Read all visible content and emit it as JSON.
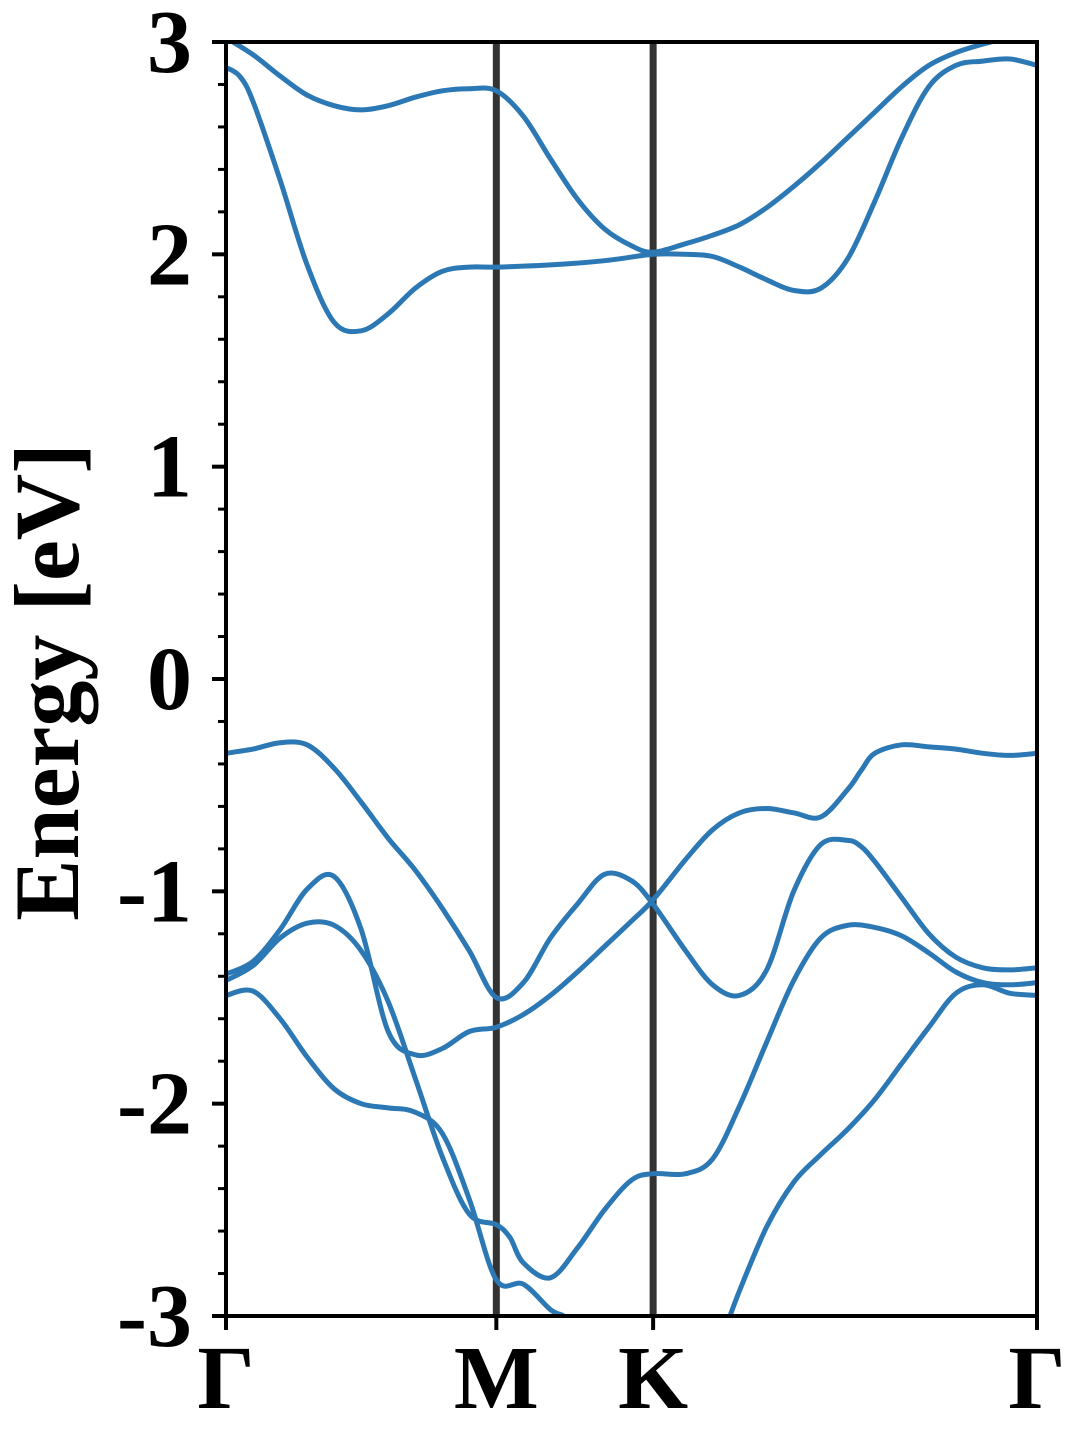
{
  "chart_data": {
    "type": "line",
    "title": "",
    "xlabel": "",
    "ylabel": "Energy [eV]",
    "ylim": [
      -3,
      3
    ],
    "xlim": [
      0,
      3
    ],
    "grid": false,
    "y_ticks": [
      "-3",
      "-2",
      "-1",
      "0",
      "1",
      "2",
      "3"
    ],
    "y_tick_values": [
      -3,
      -2,
      -1,
      0,
      1,
      2,
      3
    ],
    "y_minor_step": 0.2,
    "x_ticks": [
      {
        "label": "Γ",
        "x": 0
      },
      {
        "label": "M",
        "x": 1
      },
      {
        "label": "K",
        "x": 1.58
      },
      {
        "label": "Γ",
        "x": 3
      }
    ],
    "k_dividers": [
      1,
      1.58
    ],
    "line_color": "#2b78b5",
    "divider_color": "#333333",
    "series": [
      {
        "x": [
          0,
          0.1,
          0.2,
          0.3,
          0.4,
          0.5,
          0.6,
          0.7,
          0.8,
          0.9,
          1.0,
          1.1,
          1.2,
          1.3,
          1.4,
          1.5,
          1.58,
          1.7,
          1.8,
          1.9,
          2.0,
          2.1,
          2.2,
          2.3,
          2.4,
          2.5,
          2.6,
          2.7,
          2.8,
          2.9,
          3.0
        ],
        "y": [
          3.02,
          2.94,
          2.84,
          2.75,
          2.7,
          2.68,
          2.7,
          2.74,
          2.77,
          2.78,
          2.77,
          2.65,
          2.45,
          2.26,
          2.12,
          2.04,
          2.01,
          2.05,
          2.09,
          2.14,
          2.22,
          2.32,
          2.43,
          2.55,
          2.67,
          2.79,
          2.89,
          2.95,
          2.99,
          3.02,
          3.03
        ]
      },
      {
        "x": [
          0,
          0.05,
          0.1,
          0.2,
          0.3,
          0.4,
          0.5,
          0.6,
          0.7,
          0.8,
          0.9,
          1.0,
          1.2,
          1.4,
          1.58,
          1.7,
          1.8,
          1.9,
          2.0,
          2.1,
          2.2,
          2.3,
          2.4,
          2.5,
          2.6,
          2.7,
          2.8,
          2.9,
          3.0
        ],
        "y": [
          2.88,
          2.84,
          2.72,
          2.35,
          1.95,
          1.68,
          1.64,
          1.72,
          1.84,
          1.92,
          1.94,
          1.94,
          1.95,
          1.97,
          2.0,
          2.0,
          1.99,
          1.94,
          1.88,
          1.83,
          1.84,
          1.98,
          2.25,
          2.55,
          2.79,
          2.89,
          2.91,
          2.92,
          2.89
        ]
      },
      {
        "x": [
          0,
          0.1,
          0.2,
          0.3,
          0.4,
          0.5,
          0.6,
          0.7,
          0.8,
          0.9,
          1.0,
          1.1,
          1.2,
          1.3,
          1.4,
          1.5,
          1.58,
          1.7,
          1.8,
          1.9,
          2.0,
          2.1,
          2.2,
          2.3,
          2.35,
          2.4,
          2.5,
          2.6,
          2.7,
          2.8,
          2.9,
          3.0
        ],
        "y": [
          -0.35,
          -0.33,
          -0.3,
          -0.31,
          -0.42,
          -0.58,
          -0.75,
          -0.9,
          -1.08,
          -1.28,
          -1.5,
          -1.43,
          -1.22,
          -1.06,
          -0.92,
          -0.95,
          -1.06,
          -1.28,
          -1.44,
          -1.49,
          -1.37,
          -1.0,
          -0.78,
          -0.76,
          -0.79,
          -0.86,
          -1.03,
          -1.2,
          -1.31,
          -1.36,
          -1.37,
          -1.36
        ]
      },
      {
        "x": [
          0,
          0.1,
          0.2,
          0.3,
          0.4,
          0.5,
          0.6,
          0.7,
          0.8,
          0.9,
          1.0,
          1.1,
          1.2,
          1.3,
          1.4,
          1.5,
          1.58,
          1.7,
          1.8,
          1.9,
          2.0,
          2.1,
          2.2,
          2.3,
          2.35,
          2.4,
          2.5,
          2.6,
          2.7,
          2.8,
          2.9,
          3.0
        ],
        "y": [
          -1.39,
          -1.33,
          -1.18,
          -0.99,
          -0.93,
          -1.18,
          -1.66,
          -1.77,
          -1.74,
          -1.66,
          -1.64,
          -1.58,
          -1.49,
          -1.38,
          -1.26,
          -1.14,
          -1.04,
          -0.85,
          -0.71,
          -0.63,
          -0.61,
          -0.63,
          -0.65,
          -0.52,
          -0.43,
          -0.35,
          -0.31,
          -0.32,
          -0.33,
          -0.35,
          -0.36,
          -0.35
        ]
      },
      {
        "x": [
          0,
          0.1,
          0.2,
          0.3,
          0.4,
          0.5,
          0.6,
          0.7,
          0.8,
          0.9,
          1.0,
          1.05,
          1.1,
          1.2,
          1.3,
          1.4,
          1.5,
          1.58,
          1.7,
          1.8,
          1.9,
          2.0,
          2.1,
          2.2,
          2.3,
          2.4,
          2.5,
          2.6,
          2.7,
          2.8,
          2.9,
          3.0
        ],
        "y": [
          -1.42,
          -1.35,
          -1.22,
          -1.15,
          -1.16,
          -1.28,
          -1.52,
          -1.88,
          -2.25,
          -2.52,
          -2.57,
          -2.63,
          -2.75,
          -2.82,
          -2.68,
          -2.5,
          -2.36,
          -2.33,
          -2.33,
          -2.26,
          -2.01,
          -1.71,
          -1.42,
          -1.22,
          -1.16,
          -1.17,
          -1.21,
          -1.29,
          -1.38,
          -1.43,
          -1.44,
          -1.43
        ]
      },
      {
        "x": [
          0,
          0.1,
          0.2,
          0.3,
          0.4,
          0.5,
          0.6,
          0.7,
          0.8,
          0.9,
          1.0,
          1.1,
          1.2,
          1.25,
          1.3
        ],
        "y": [
          -1.49,
          -1.47,
          -1.6,
          -1.78,
          -1.93,
          -2.0,
          -2.02,
          -2.04,
          -2.14,
          -2.45,
          -2.83,
          -2.85,
          -2.97,
          -3.0,
          -3.05
        ]
      },
      {
        "x": [
          1.85,
          1.9,
          2.0,
          2.1,
          2.2,
          2.3,
          2.4,
          2.5,
          2.6,
          2.7,
          2.8,
          2.9,
          3.0
        ],
        "y": [
          -3.05,
          -2.88,
          -2.58,
          -2.37,
          -2.24,
          -2.12,
          -1.98,
          -1.81,
          -1.64,
          -1.48,
          -1.44,
          -1.48,
          -1.49
        ]
      }
    ]
  }
}
